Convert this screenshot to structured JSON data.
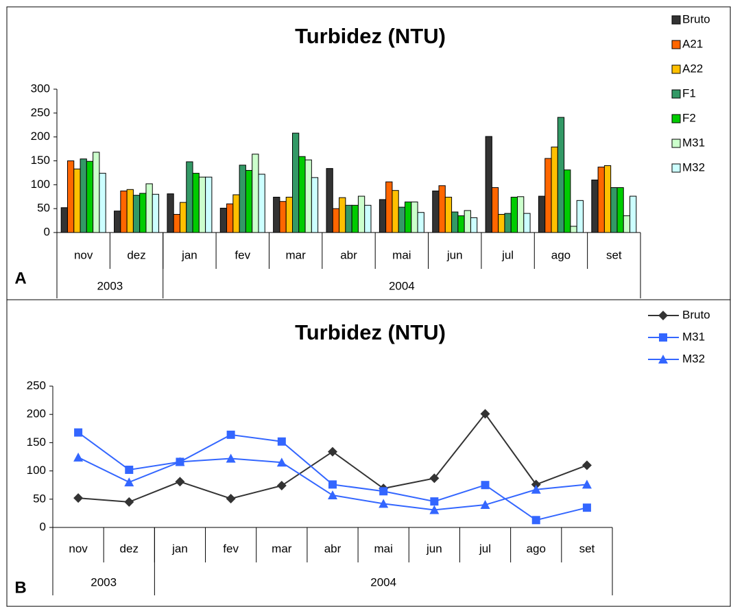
{
  "chart_data": [
    {
      "type": "bar",
      "title": "Turbidez (NTU)",
      "panel_label": "A",
      "categories": [
        "nov",
        "dez",
        "jan",
        "fev",
        "mar",
        "abr",
        "mai",
        "jun",
        "jul",
        "ago",
        "set"
      ],
      "category_groups": [
        {
          "label": "2003",
          "count": 2
        },
        {
          "label": "2004",
          "count": 9
        }
      ],
      "series": [
        {
          "name": "Bruto",
          "color": "#333333",
          "values": [
            52,
            45,
            81,
            51,
            74,
            134,
            69,
            87,
            201,
            76,
            110
          ]
        },
        {
          "name": "A21",
          "color": "#ff6600",
          "values": [
            150,
            87,
            38,
            60,
            65,
            50,
            106,
            98,
            94,
            155,
            137
          ]
        },
        {
          "name": "A22",
          "color": "#ffc000",
          "values": [
            133,
            90,
            63,
            79,
            74,
            73,
            88,
            74,
            38,
            179,
            140
          ]
        },
        {
          "name": "F1",
          "color": "#339966",
          "values": [
            154,
            78,
            148,
            141,
            208,
            57,
            53,
            43,
            40,
            241,
            94
          ]
        },
        {
          "name": "F2",
          "color": "#00cc00",
          "values": [
            149,
            82,
            124,
            130,
            159,
            57,
            64,
            35,
            74,
            131,
            94
          ]
        },
        {
          "name": "M31",
          "color": "#ccffcc",
          "values": [
            168,
            102,
            116,
            164,
            152,
            76,
            64,
            46,
            75,
            13,
            35
          ]
        },
        {
          "name": "M32",
          "color": "#ccffff",
          "values": [
            124,
            80,
            116,
            122,
            115,
            57,
            42,
            31,
            40,
            67,
            76
          ]
        }
      ],
      "ylim": [
        0,
        300
      ],
      "yticks": [
        0,
        50,
        100,
        150,
        200,
        250,
        300
      ],
      "grid": false,
      "legend": "right"
    },
    {
      "type": "line",
      "title": "Turbidez (NTU)",
      "panel_label": "B",
      "categories": [
        "nov",
        "dez",
        "jan",
        "fev",
        "mar",
        "abr",
        "mai",
        "jun",
        "jul",
        "ago",
        "set"
      ],
      "category_groups": [
        {
          "label": "2003",
          "count": 2
        },
        {
          "label": "2004",
          "count": 9
        }
      ],
      "series": [
        {
          "name": "Bruto",
          "color": "#333333",
          "marker": "diamond",
          "values": [
            52,
            45,
            81,
            51,
            74,
            134,
            69,
            87,
            201,
            76,
            110
          ]
        },
        {
          "name": "M31",
          "color": "#3366ff",
          "marker": "square",
          "values": [
            168,
            102,
            116,
            164,
            152,
            76,
            64,
            46,
            75,
            13,
            35
          ]
        },
        {
          "name": "M32",
          "color": "#3366ff",
          "marker": "triangle",
          "values": [
            124,
            80,
            116,
            122,
            115,
            57,
            42,
            31,
            40,
            67,
            76
          ]
        }
      ],
      "ylim": [
        0,
        250
      ],
      "yticks": [
        0,
        50,
        100,
        150,
        200,
        250
      ],
      "grid": false,
      "legend": "right"
    }
  ]
}
